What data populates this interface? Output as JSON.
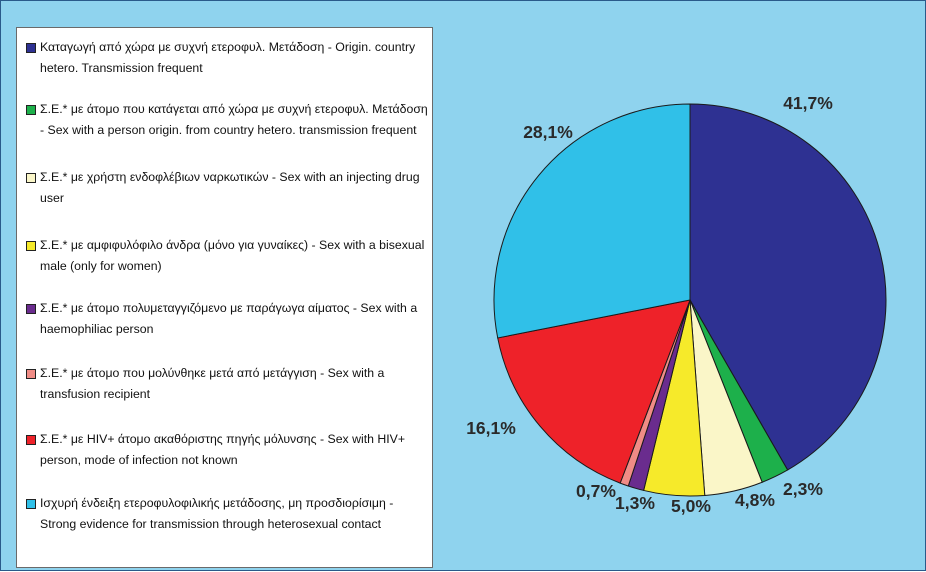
{
  "chart_data": {
    "type": "pie",
    "title": "",
    "slices": [
      {
        "label": "Καταγωγή από χώρα με συχνή ετεροφυλ. Μετάδοση - Origin. country hetero. Transmission frequent",
        "value": 41.7,
        "display": "41,7%",
        "color": "#2e3192"
      },
      {
        "label": "Σ.Ε.* με άτομο που κατάγεται από χώρα με συχνή ετεροφυλ. Μετάδοση - Sex with a person origin. from country hetero. transmission frequent",
        "value": 2.3,
        "display": "2,3%",
        "color": "#1db04b"
      },
      {
        "label": "Σ.Ε.* με χρήστη ενδοφλέβιων ναρκωτικών - Sex with an injecting drug user",
        "value": 4.8,
        "display": "4,8%",
        "color": "#faf6c8"
      },
      {
        "label": "Σ.Ε.* με αμφιφυλόφιλο άνδρα (μόνο για γυναίκες) - Sex with a bisexual male (only for women)",
        "value": 5.0,
        "display": "5,0%",
        "color": "#f6ea2a"
      },
      {
        "label": "Σ.Ε.* με άτομο πολυμεταγγιζόμενο με παράγωγα αίματος - Sex with a haemophiliac person",
        "value": 1.3,
        "display": "1,3%",
        "color": "#6a2c8e"
      },
      {
        "label": "Σ.Ε.* με άτομο που μολύνθηκε μετά από μετάγγιση - Sex with a transfusion recipient",
        "value": 0.7,
        "display": "0,7%",
        "color": "#f08c86"
      },
      {
        "label": "Σ.Ε.* με HIV+ άτομο ακαθόριστης πηγής μόλυνσης - Sex with HIV+ person, mode of infection not known",
        "value": 16.1,
        "display": "16,1%",
        "color": "#ee2229"
      },
      {
        "label": "Ισχυρή ένδειξη ετεροφυλοφιλικής μετάδοσης, μη προσδιορίσιμη - Strong evidence for transmission through heterosexual contact",
        "value": 28.1,
        "display": "28,1%",
        "color": "#30c0e8"
      }
    ],
    "legend": "left",
    "start_angle": "12 o'clock",
    "direction": "clockwise"
  },
  "colors": {
    "background": "#8fd3ee",
    "legend_background": "#ffffff",
    "slice_outline": "#1a1a1a"
  }
}
